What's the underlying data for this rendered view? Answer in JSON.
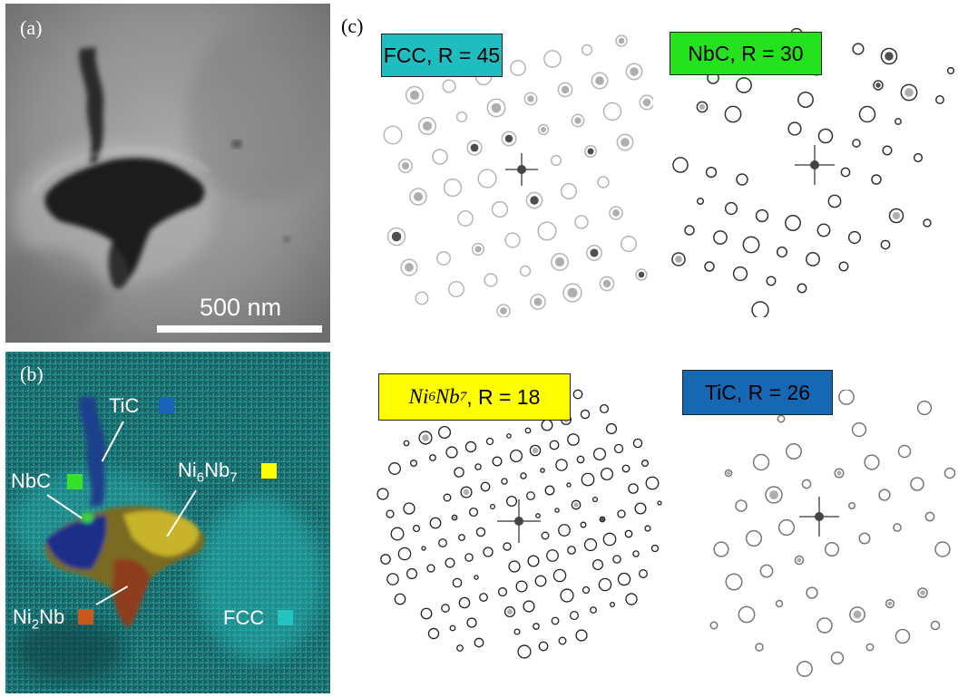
{
  "panels": {
    "a": {
      "letter": "(a)",
      "scale_bar_label": "500 nm"
    },
    "b": {
      "letter": "(b)",
      "phases": [
        {
          "name": "TiC",
          "color": "#1b63b8"
        },
        {
          "name": "NbC",
          "color": "#38e02a"
        },
        {
          "name_base": "Ni",
          "sub1": "6",
          "mid": "Nb",
          "sub2": "7",
          "color": "#ffff00"
        },
        {
          "name_base": "Ni",
          "sub1": "2",
          "mid": "Nb",
          "color": "#c8581c"
        },
        {
          "name": "FCC",
          "color": "#25c2c2"
        }
      ]
    },
    "c": {
      "letter": "(c)",
      "patterns": [
        {
          "label": "FCC, R = 45",
          "color": "#1fbcc0"
        },
        {
          "label": "NbC, R = 30",
          "color": "#25e21f"
        },
        {
          "formula_italic": "Ni",
          "sub1": "6",
          "formula_italic2": "Nb",
          "sub2": "7",
          "label_suffix": ", R = 18",
          "color": "#ffff00"
        },
        {
          "label": "TiC, R = 26",
          "color": "#1668b5"
        }
      ]
    }
  }
}
